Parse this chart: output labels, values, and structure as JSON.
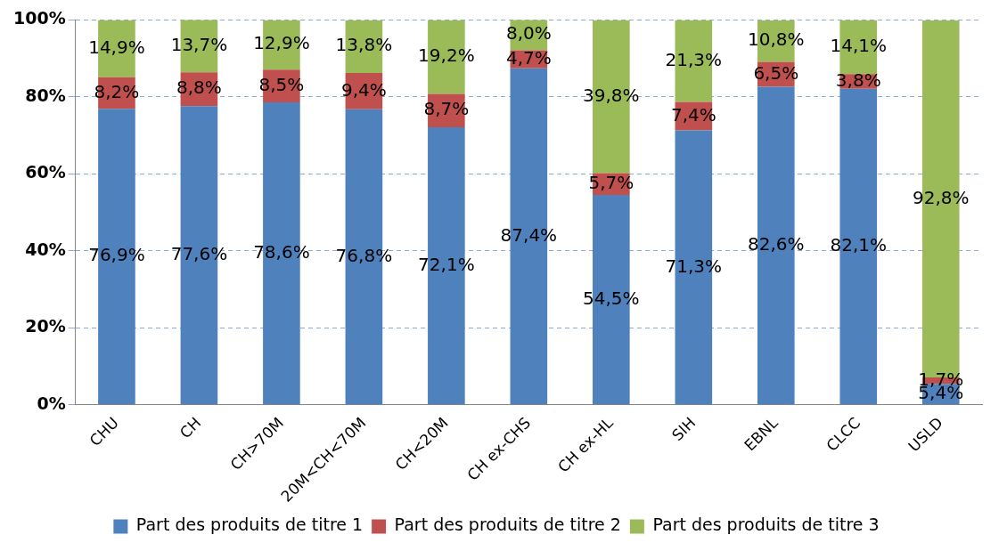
{
  "chart_data": {
    "type": "bar",
    "stacked": true,
    "categories": [
      "CHU",
      "CH",
      "CH>70M",
      "20M<CH<70M",
      "CH<20M",
      "CH ex-CHS",
      "CH ex-HL",
      "SIH",
      "EBNL",
      "CLCC",
      "USLD"
    ],
    "series": [
      {
        "name": "Part des produits de titre 1",
        "color": "#4f81bd",
        "values": [
          76.9,
          77.6,
          78.6,
          76.8,
          72.1,
          87.4,
          54.5,
          71.3,
          82.6,
          82.1,
          5.4
        ],
        "value_labels": [
          "76,9%",
          "77,6%",
          "78,6%",
          "76,8%",
          "72,1%",
          "87,4%",
          "54,5%",
          "71,3%",
          "82,6%",
          "82,1%",
          "5,4%"
        ]
      },
      {
        "name": "Part des produits de titre 2",
        "color": "#c0504d",
        "values": [
          8.2,
          8.8,
          8.5,
          9.4,
          8.7,
          4.7,
          5.7,
          7.4,
          6.5,
          3.8,
          1.7
        ],
        "value_labels": [
          "8,2%",
          "8,8%",
          "8,5%",
          "9,4%",
          "8,7%",
          "4,7%",
          "5,7%",
          "7,4%",
          "6,5%",
          "3,8%",
          "1,7%"
        ]
      },
      {
        "name": "Part des produits de titre 3",
        "color": "#9bbb59",
        "values": [
          14.9,
          13.7,
          12.9,
          13.8,
          19.2,
          8.0,
          39.8,
          21.3,
          10.8,
          14.1,
          92.8
        ],
        "value_labels": [
          "14,9%",
          "13,7%",
          "12,9%",
          "13,8%",
          "19,2%",
          "8,0%",
          "39,8%",
          "21,3%",
          "10,8%",
          "14,1%",
          "92,8%"
        ]
      }
    ],
    "ylim": [
      0,
      100
    ],
    "yticks": [
      {
        "value": 0,
        "label": "0%"
      },
      {
        "value": 20,
        "label": "20%"
      },
      {
        "value": 40,
        "label": "40%"
      },
      {
        "value": 60,
        "label": "60%"
      },
      {
        "value": 80,
        "label": "80%"
      },
      {
        "value": 100,
        "label": "100%"
      }
    ],
    "grid": "y",
    "legend": "bottom"
  }
}
